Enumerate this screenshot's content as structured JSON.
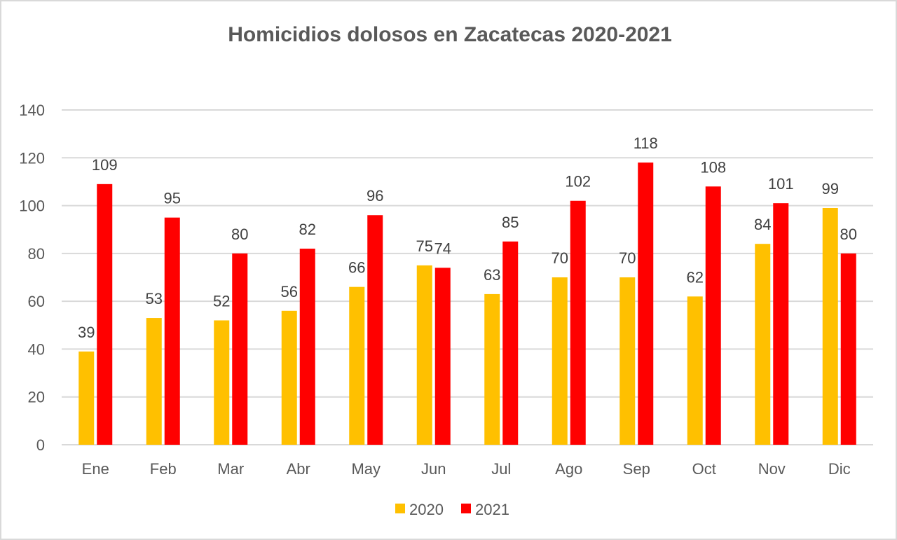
{
  "chart_data": {
    "type": "bar",
    "title": "Homicidios dolosos en Zacatecas 2020-2021",
    "xlabel": "",
    "ylabel": "",
    "categories": [
      "Ene",
      "Feb",
      "Mar",
      "Abr",
      "May",
      "Jun",
      "Jul",
      "Ago",
      "Sep",
      "Oct",
      "Nov",
      "Dic"
    ],
    "series": [
      {
        "name": "2020",
        "color": "#FFC000",
        "values": [
          39,
          53,
          52,
          56,
          66,
          75,
          63,
          70,
          70,
          62,
          84,
          99
        ]
      },
      {
        "name": "2021",
        "color": "#FF0000",
        "values": [
          109,
          95,
          80,
          82,
          96,
          74,
          85,
          102,
          118,
          108,
          101,
          80
        ]
      }
    ],
    "ylim": [
      0,
      140
    ],
    "yticks": [
      "0",
      "20",
      "40",
      "60",
      "80",
      "100",
      "120",
      "140"
    ],
    "grid": true,
    "legend": "bottom",
    "data_labels": true
  }
}
